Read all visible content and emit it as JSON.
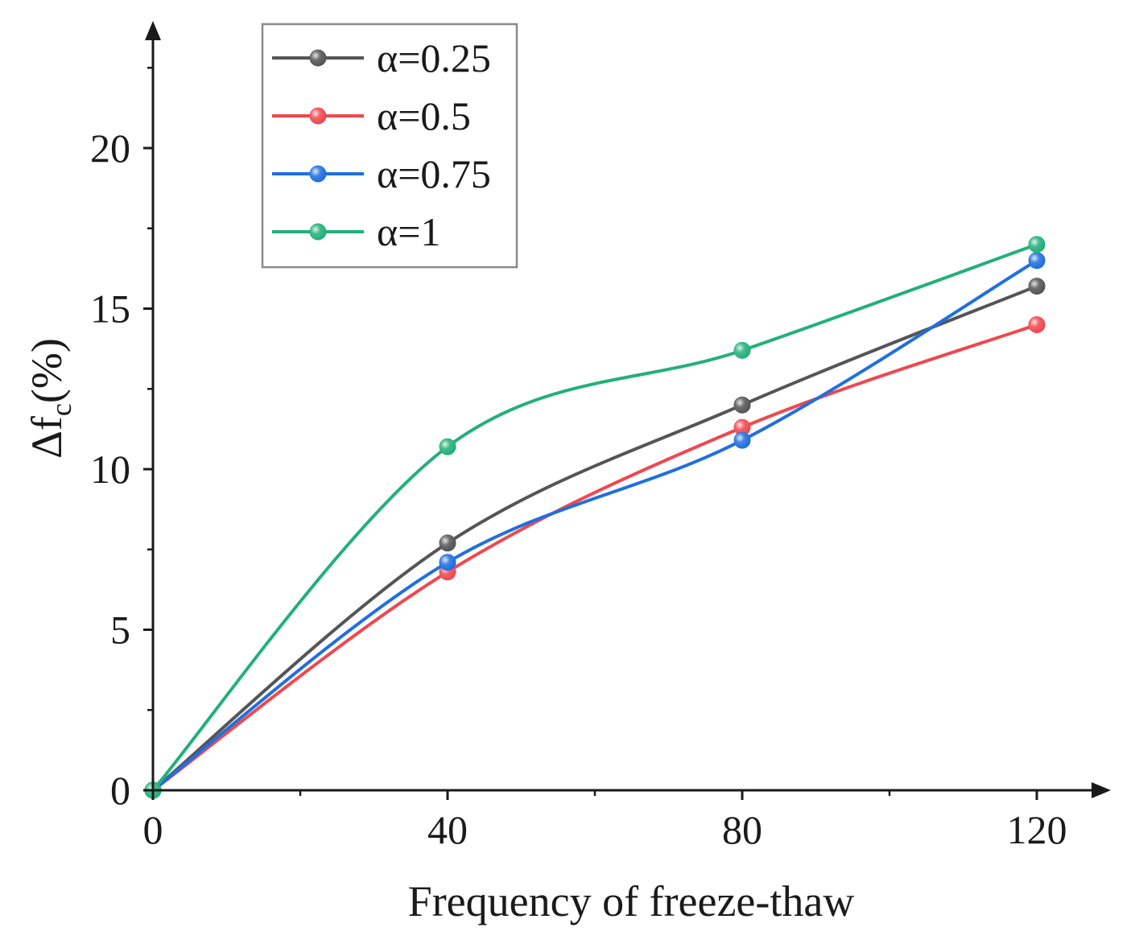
{
  "chart_data": {
    "type": "line",
    "title": "",
    "xlabel": "Frequency of freeze-thaw",
    "ylabel_main": "Δf",
    "ylabel_sub": "c",
    "ylabel_suffix": "(%)",
    "x": [
      0,
      40,
      80,
      120
    ],
    "xlim": [
      0,
      130
    ],
    "ylim": [
      0,
      23
    ],
    "xticks": [
      0,
      40,
      80,
      120
    ],
    "xtick_labels": [
      "0",
      "40",
      "80",
      "120"
    ],
    "xminor": [
      20,
      60,
      100
    ],
    "yticks": [
      0,
      5,
      10,
      15,
      20
    ],
    "ytick_labels": [
      "0",
      "5",
      "10",
      "15",
      "20"
    ],
    "yminor": [
      2.5,
      7.5,
      12.5,
      17.5,
      22.5
    ],
    "grid": false,
    "legend_position": "top-left",
    "series": [
      {
        "name": "α=0.25",
        "values": [
          0,
          7.7,
          12.0,
          15.7
        ],
        "color": "#555555"
      },
      {
        "name": "α=0.5",
        "values": [
          0,
          6.8,
          11.3,
          14.5
        ],
        "color": "#f0474f"
      },
      {
        "name": "α=0.75",
        "values": [
          0,
          7.1,
          10.9,
          16.5
        ],
        "color": "#1f6fe0"
      },
      {
        "name": "α=1",
        "values": [
          0,
          10.7,
          13.7,
          17.0
        ],
        "color": "#22b07a"
      }
    ]
  }
}
